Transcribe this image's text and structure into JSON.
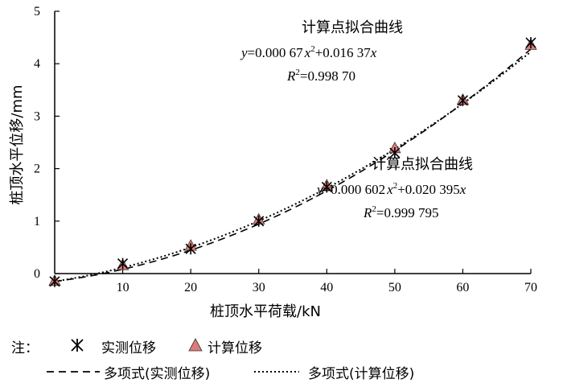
{
  "chart_data": {
    "type": "scatter",
    "xlabel": "桩顶水平荷载/kN",
    "ylabel": "桩顶水平位移/mm",
    "xlim": [
      0,
      70
    ],
    "ylim": [
      0,
      5
    ],
    "xticks": [
      "10",
      "20",
      "30",
      "40",
      "50",
      "60",
      "70"
    ],
    "yticks": [
      "0",
      "1",
      "2",
      "3",
      "4",
      "5"
    ],
    "grid": false,
    "series": [
      {
        "name": "实测位移",
        "marker": "asterisk",
        "x": [
          0,
          10,
          20,
          30,
          40,
          50,
          60,
          70
        ],
        "y": [
          -0.15,
          0.19,
          0.47,
          1.0,
          1.65,
          2.3,
          3.3,
          4.4
        ]
      },
      {
        "name": "计算位移",
        "marker": "triangle",
        "color": "#e07a7a",
        "x": [
          0,
          10,
          20,
          30,
          40,
          50,
          60,
          70
        ],
        "y": [
          -0.15,
          0.15,
          0.52,
          1.02,
          1.67,
          2.38,
          3.3,
          4.35
        ]
      },
      {
        "name": "多项式(实测位移)",
        "line": "dashed",
        "coef": [
          0.00067,
          0.01637
        ]
      },
      {
        "name": "多项式(计算位移)",
        "line": "dotted",
        "coef": [
          0.000602,
          0.020395
        ]
      }
    ],
    "annotations": [
      {
        "title": "计算点拟合曲线",
        "eq_y": "y",
        "eq_mid": "=0.000 67",
        "eq_x1": "x",
        "eq_sup": "2",
        "eq_end": "+0.016 37",
        "eq_x2": "x",
        "r2_label": "R",
        "r2_sup": "2",
        "r2_value": "=0.998 70"
      },
      {
        "title": "计算点拟合曲线",
        "eq_y": "y",
        "eq_mid": "=0.000 602",
        "eq_x1": "x",
        "eq_sup": "2",
        "eq_end": "+0.020 395",
        "eq_x2": "x",
        "r2_label": "R",
        "r2_sup": "2",
        "r2_value": "=0.999 795"
      }
    ],
    "legend": {
      "note": "注：",
      "placement": "bottom"
    }
  }
}
